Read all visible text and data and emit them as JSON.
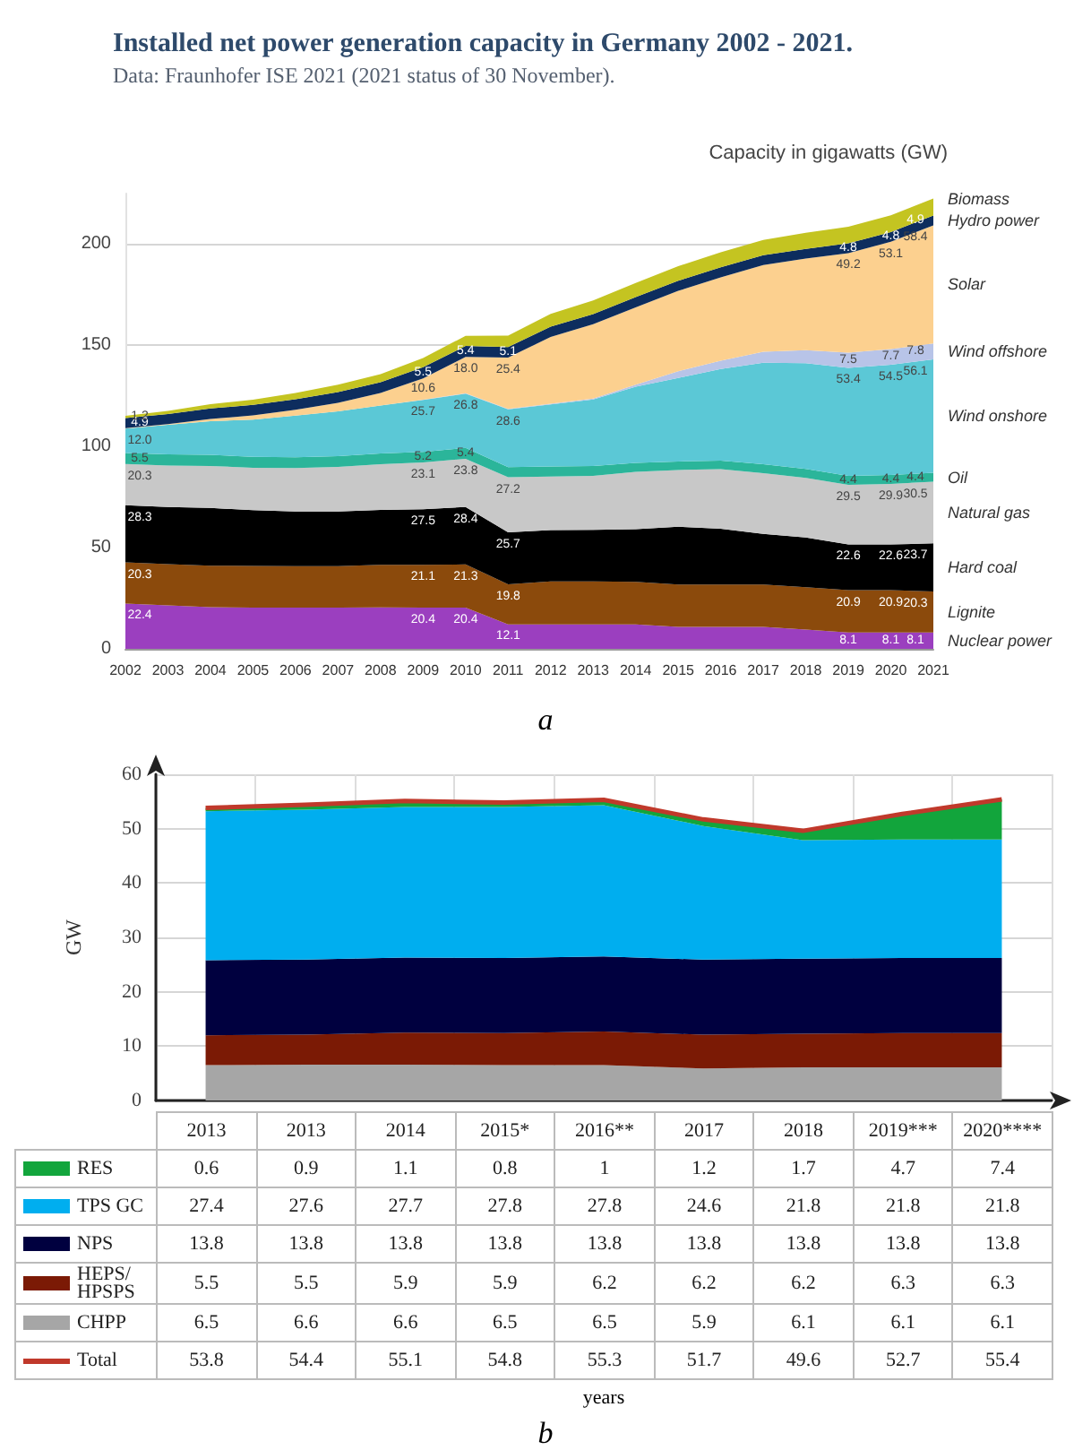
{
  "chart_data": [
    {
      "type": "area",
      "stacked": true,
      "title": "Installed net power generation capacity in Germany 2002 - 2021.",
      "subtitle": "Data: Fraunhofer ISE 2021 (2021 status of 30 November).",
      "ylabel": "Capacity in gigawatts (GW)",
      "categories": [
        "2002",
        "2003",
        "2004",
        "2005",
        "2006",
        "2007",
        "2008",
        "2009",
        "2010",
        "2011",
        "2012",
        "2013",
        "2014",
        "2015",
        "2016",
        "2017",
        "2018",
        "2019",
        "2020",
        "2021"
      ],
      "ylim": [
        0,
        225
      ],
      "yticks": [
        0,
        50,
        100,
        150,
        200
      ],
      "grid": "y",
      "annotations": [
        "a"
      ],
      "series": [
        {
          "name": "Nuclear power",
          "color": "#9b3fbf",
          "values": [
            22.4,
            21.5,
            20.6,
            20.4,
            20.4,
            20.4,
            20.5,
            20.4,
            20.4,
            12.1,
            12.1,
            12.1,
            12.1,
            10.8,
            10.8,
            10.8,
            9.5,
            8.1,
            8.1,
            8.1
          ],
          "value_labels": [
            "22.4",
            null,
            null,
            null,
            null,
            null,
            null,
            "20.4",
            "20.4",
            "12.1",
            null,
            null,
            null,
            null,
            null,
            null,
            null,
            "8.1",
            "8.1",
            "8.1"
          ]
        },
        {
          "name": "Lignite",
          "color": "#8b4a0c",
          "values": [
            20.3,
            20.3,
            20.5,
            20.6,
            20.5,
            20.5,
            21.0,
            21.1,
            21.3,
            19.8,
            21.2,
            21.2,
            21.0,
            21.0,
            21.0,
            21.0,
            21.0,
            20.9,
            20.9,
            20.3
          ],
          "value_labels": [
            "20.3",
            null,
            null,
            null,
            null,
            null,
            null,
            "21.1",
            "21.3",
            "19.8",
            null,
            null,
            null,
            null,
            null,
            null,
            null,
            "20.9",
            "20.9",
            "20.3"
          ]
        },
        {
          "name": "Hard coal",
          "color": "#000000",
          "values": [
            28.3,
            28.3,
            28.5,
            27.5,
            27.0,
            27.0,
            27.2,
            27.5,
            28.4,
            25.7,
            25.4,
            25.5,
            26.0,
            28.6,
            27.5,
            25.0,
            24.5,
            22.6,
            22.6,
            23.7
          ],
          "value_labels": [
            "28.3",
            null,
            null,
            null,
            null,
            null,
            null,
            "27.5",
            "28.4",
            "25.7",
            null,
            null,
            null,
            null,
            null,
            null,
            null,
            "22.6",
            "22.6",
            "23.7"
          ]
        },
        {
          "name": "Natural gas",
          "color": "#c8c8c8",
          "values": [
            20.3,
            20.5,
            20.8,
            21.0,
            21.5,
            22.0,
            22.5,
            23.1,
            23.8,
            27.2,
            26.5,
            26.7,
            28.4,
            28.0,
            29.5,
            30.0,
            29.5,
            29.5,
            29.9,
            30.5
          ],
          "value_labels": [
            "20.3",
            null,
            null,
            null,
            null,
            null,
            null,
            "23.1",
            "23.8",
            "27.2",
            null,
            null,
            null,
            null,
            null,
            null,
            null,
            "29.5",
            "29.9",
            "30.5"
          ]
        },
        {
          "name": "Oil",
          "color": "#2bb59a",
          "values": [
            5.5,
            5.5,
            5.5,
            5.4,
            5.3,
            5.3,
            5.3,
            5.2,
            5.4,
            5.0,
            4.9,
            4.8,
            4.4,
            4.2,
            4.2,
            4.4,
            4.4,
            4.4,
            4.4,
            4.4
          ],
          "value_labels": [
            "5.5",
            null,
            null,
            null,
            null,
            null,
            null,
            "5.2",
            "5.4",
            null,
            null,
            null,
            null,
            null,
            null,
            null,
            null,
            "4.4",
            "4.4",
            "4.4"
          ]
        },
        {
          "name": "Wind onshore",
          "color": "#5bc8d6",
          "values": [
            12.0,
            14.6,
            16.6,
            18.4,
            20.6,
            22.2,
            23.8,
            25.7,
            26.8,
            28.6,
            30.7,
            32.9,
            37.6,
            41.3,
            45.3,
            50.2,
            52.3,
            53.4,
            54.5,
            56.1
          ],
          "value_labels": [
            "12.0",
            null,
            null,
            null,
            null,
            null,
            null,
            "25.7",
            "26.8",
            "28.6",
            null,
            null,
            null,
            null,
            null,
            null,
            null,
            "53.4",
            "54.5",
            "56.1"
          ]
        },
        {
          "name": "Wind offshore",
          "color": "#b8c4e8",
          "values": [
            0,
            0,
            0,
            0,
            0,
            0,
            0,
            0.1,
            0.2,
            0.2,
            0.3,
            0.5,
            1.0,
            3.3,
            4.1,
            5.4,
            6.4,
            7.5,
            7.7,
            7.8
          ],
          "value_labels": [
            null,
            null,
            null,
            null,
            null,
            null,
            null,
            null,
            null,
            null,
            null,
            null,
            null,
            null,
            null,
            null,
            null,
            "7.5",
            "7.7",
            "7.8"
          ]
        },
        {
          "name": "Solar",
          "color": "#fcd08f",
          "values": [
            0.3,
            0.4,
            1.1,
            2.1,
            2.9,
            4.2,
            6.1,
            10.6,
            18.0,
            25.4,
            33.0,
            36.7,
            38.3,
            39.7,
            41.2,
            42.9,
            45.3,
            49.2,
            53.1,
            58.4
          ],
          "value_labels": [
            null,
            null,
            null,
            null,
            null,
            null,
            null,
            "10.6",
            "18.0",
            "25.4",
            null,
            null,
            null,
            null,
            null,
            null,
            null,
            "49.2",
            "53.1",
            "58.4"
          ]
        },
        {
          "name": "Hydro power",
          "color": "#0d2d5e",
          "values": [
            4.9,
            4.9,
            5.2,
            5.2,
            5.2,
            5.3,
            5.4,
            5.5,
            5.4,
            5.1,
            5.1,
            5.0,
            5.0,
            5.0,
            5.0,
            4.8,
            4.8,
            4.8,
            4.8,
            4.9
          ],
          "value_labels": [
            "4.9",
            null,
            null,
            null,
            null,
            null,
            null,
            "5.5",
            "5.4",
            "5.1",
            null,
            null,
            null,
            null,
            null,
            null,
            null,
            "4.8",
            "4.8",
            "4.9"
          ]
        },
        {
          "name": "Biomass",
          "color": "#c4c421",
          "values": [
            1.2,
            1.6,
            2.1,
            2.5,
            3.0,
            3.6,
            4.0,
            4.5,
            5.0,
            5.7,
            6.3,
            6.8,
            7.0,
            7.2,
            7.4,
            7.6,
            7.9,
            8.2,
            8.3,
            8.4
          ],
          "value_labels": [
            "1.2",
            null,
            null,
            null,
            null,
            null,
            null,
            null,
            null,
            null,
            null,
            null,
            null,
            null,
            null,
            null,
            null,
            null,
            null,
            null
          ]
        }
      ]
    },
    {
      "type": "area",
      "stacked": true,
      "categories": [
        "2013",
        "2013",
        "2014",
        "2015*",
        "2016**",
        "2017",
        "2018",
        "2019***",
        "2020****"
      ],
      "xlabel": "years",
      "ylabel": "GW",
      "ylim": [
        0,
        60
      ],
      "yticks": [
        0,
        10,
        20,
        30,
        40,
        50,
        60
      ],
      "grid": true,
      "tick_labels": "y",
      "legend": "bottom",
      "data_labels": true,
      "annotations": [
        "b"
      ],
      "series": [
        {
          "name": "CHPP",
          "color": "#a6a6a6",
          "values": [
            6.5,
            6.6,
            6.6,
            6.5,
            6.5,
            5.9,
            6.1,
            6.1,
            6.1
          ]
        },
        {
          "name": "HEPS/ HPSPS",
          "color": "#7b1a05",
          "values": [
            5.5,
            5.5,
            5.9,
            5.9,
            6.2,
            6.2,
            6.2,
            6.3,
            6.3
          ]
        },
        {
          "name": "NPS",
          "color": "#00003f",
          "values": [
            13.8,
            13.8,
            13.8,
            13.8,
            13.8,
            13.8,
            13.8,
            13.8,
            13.8
          ]
        },
        {
          "name": "TPS GC",
          "color": "#00aeef",
          "values": [
            27.4,
            27.6,
            27.7,
            27.8,
            27.8,
            24.6,
            21.8,
            21.8,
            21.8
          ]
        },
        {
          "name": "RES",
          "color": "#12a53c",
          "values": [
            0.6,
            0.9,
            1.1,
            0.8,
            1,
            1.2,
            1.7,
            4.7,
            7.4
          ]
        },
        {
          "name": "Total",
          "type": "line",
          "color": "#c0392b",
          "values": [
            53.8,
            54.4,
            55.1,
            54.8,
            55.3,
            51.7,
            49.6,
            52.7,
            55.4
          ]
        }
      ]
    }
  ]
}
